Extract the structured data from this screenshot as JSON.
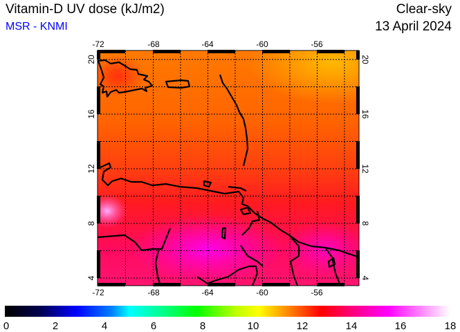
{
  "header": {
    "title": "Vitamin-D UV dose (kJ/m2)",
    "source": "MSR - KNMI",
    "mode": "Clear-sky",
    "date": "13 April 2024"
  },
  "map": {
    "lon_ticks": [
      "-72",
      "-68",
      "-64",
      "-60",
      "-56"
    ],
    "lat_ticks": [
      "20",
      "16",
      "12",
      "8",
      "4"
    ],
    "lon_range": [
      -72,
      -53
    ],
    "lat_range": [
      3.4,
      20.7
    ]
  },
  "colorbar": {
    "labels": [
      "0",
      "2",
      "4",
      "6",
      "8",
      "10",
      "12",
      "14",
      "16",
      "18"
    ],
    "stops": [
      "#000000",
      "#000050",
      "#0000ff",
      "#00a0ff",
      "#00ffff",
      "#00ff80",
      "#00ff00",
      "#c0ff00",
      "#ffff00",
      "#ff8000",
      "#ff0000",
      "#ff00a0",
      "#ff00ff",
      "#ff80ff",
      "#ffffff"
    ]
  }
}
